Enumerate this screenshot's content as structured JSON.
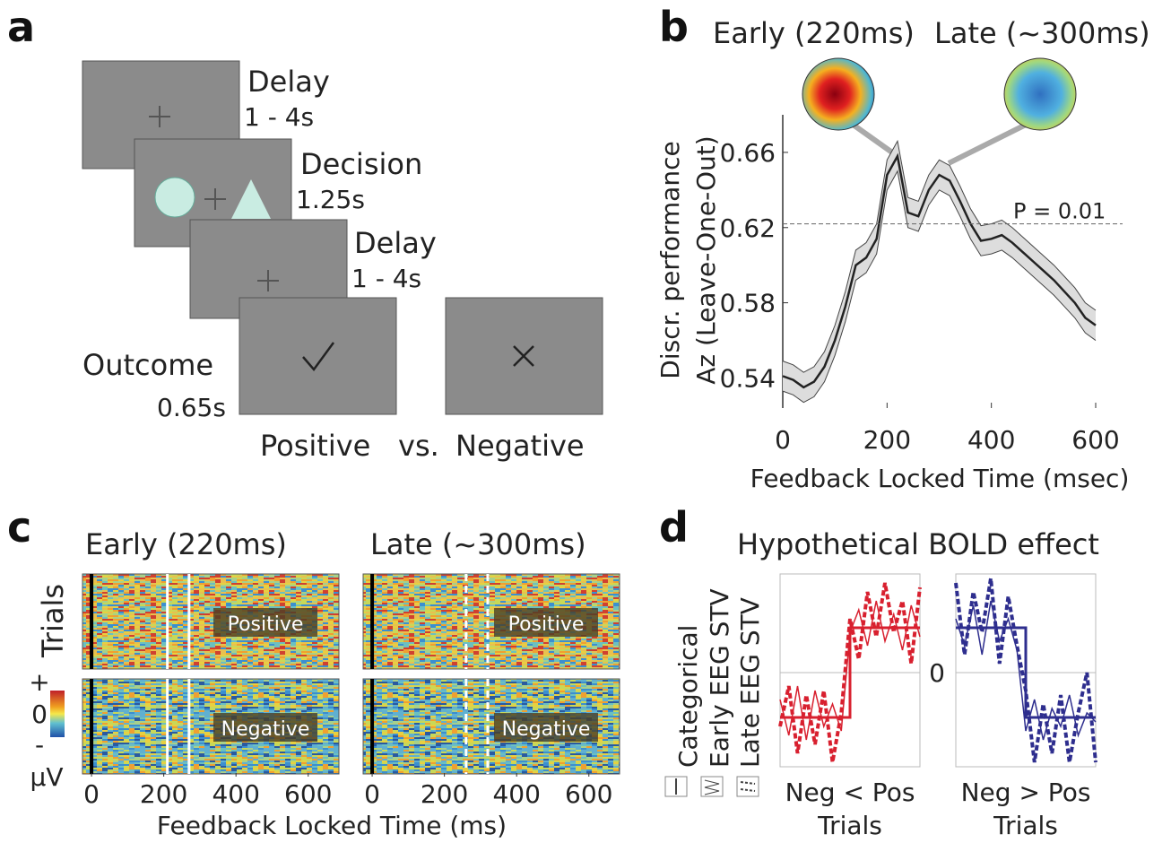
{
  "panel_labels": [
    "a",
    "b",
    "c",
    "d"
  ],
  "task_diagram": {
    "screens": [
      {
        "label": "Delay",
        "duration": "1 - 4s"
      },
      {
        "label": "Decision",
        "duration": "1.25s"
      },
      {
        "label": "Delay",
        "duration": "1 - 4s"
      },
      {
        "label": "Outcome",
        "duration": "0.65s"
      }
    ],
    "outcomes": [
      "Positive",
      "vs.",
      "Negative"
    ]
  },
  "chart_data": [
    {
      "type": "line",
      "topomap_titles": [
        "Early (220ms)",
        "Late (~300ms)"
      ],
      "ylabel": [
        "Discr. performance",
        "Az (Leave-One-Out)"
      ],
      "xlabel": "Feedback Locked Time (msec)",
      "x": [
        0,
        20,
        40,
        60,
        80,
        100,
        120,
        140,
        160,
        180,
        200,
        220,
        240,
        260,
        280,
        300,
        320,
        340,
        360,
        380,
        400,
        420,
        440,
        460,
        480,
        500,
        520,
        540,
        560,
        580,
        600
      ],
      "values": [
        0.541,
        0.539,
        0.535,
        0.538,
        0.546,
        0.56,
        0.578,
        0.6,
        0.604,
        0.614,
        0.648,
        0.658,
        0.628,
        0.626,
        0.64,
        0.648,
        0.645,
        0.634,
        0.622,
        0.613,
        0.614,
        0.616,
        0.612,
        0.607,
        0.602,
        0.597,
        0.592,
        0.586,
        0.58,
        0.572,
        0.568
      ],
      "errors": [
        0.008,
        0.008,
        0.008,
        0.008,
        0.008,
        0.008,
        0.008,
        0.008,
        0.008,
        0.008,
        0.008,
        0.008,
        0.008,
        0.008,
        0.008,
        0.008,
        0.008,
        0.008,
        0.008,
        0.008,
        0.008,
        0.008,
        0.008,
        0.008,
        0.008,
        0.008,
        0.008,
        0.008,
        0.008,
        0.008,
        0.008
      ],
      "color": "#222222",
      "band_color": "#dddddd",
      "xlim": [
        0,
        600
      ],
      "ylim": [
        0.524,
        0.68
      ],
      "xticks": [
        0,
        200,
        400,
        600
      ],
      "yticks": [
        0.54,
        0.58,
        0.62,
        0.66
      ],
      "threshold": {
        "value": 0.622,
        "label": "P = 0.01"
      }
    },
    {
      "type": "raster",
      "panels": [
        {
          "title": "Early (220ms)",
          "window": [
            210,
            270
          ],
          "window_line": "solid"
        },
        {
          "title": "Late (~300ms)",
          "window": [
            260,
            320
          ],
          "window_line": "dashed"
        }
      ],
      "rows": [
        "Positive",
        "Negative"
      ],
      "ylabel": "Trials",
      "xlabel": "Feedback Locked Time (ms)",
      "xlim": [
        -25,
        685
      ],
      "xticks": [
        0,
        200,
        400,
        600
      ],
      "colorbar": {
        "labels": [
          "+",
          "0",
          "-"
        ],
        "unit": "µV"
      }
    },
    {
      "type": "step",
      "title": "Hypothetical BOLD effect",
      "legend": [
        {
          "name": "Categorical",
          "line": "solid"
        },
        {
          "name": "Early EEG STV",
          "line": "thin"
        },
        {
          "name": "Late EEG STV",
          "line": "dashed"
        }
      ],
      "xlim": [
        0,
        16
      ],
      "ylim": [
        -2.1,
        2.2
      ],
      "yticks": [
        0
      ],
      "plots": [
        {
          "label": "Neg < Pos",
          "xlabel": "Trials",
          "color": "#d8202f",
          "series": [
            {
              "x": [
                0,
                8,
                8,
                16
              ],
              "values": [
                -1,
                -1,
                1,
                1
              ]
            },
            {
              "x": [
                0,
                1,
                2,
                3,
                4,
                5,
                6,
                7,
                8,
                9,
                10,
                11,
                12,
                13,
                14,
                15,
                16
              ],
              "values": [
                -0.6,
                -1.4,
                -0.3,
                -1.5,
                -0.4,
                -1.2,
                -0.7,
                -1.3,
                0.9,
                1.4,
                0.6,
                1.6,
                0.7,
                1.3,
                0.5,
                1.5,
                0.8
              ]
            },
            {
              "x": [
                0,
                1,
                2,
                3,
                4,
                5,
                6,
                7,
                8,
                9,
                10,
                11,
                12,
                13,
                14,
                15,
                16
              ],
              "values": [
                -1.2,
                -0.3,
                -1.8,
                -0.5,
                -1.6,
                -0.4,
                -2.0,
                -0.9,
                1.2,
                0.3,
                1.8,
                0.8,
                2.0,
                0.9,
                1.6,
                0.2,
                1.9
              ]
            }
          ]
        },
        {
          "label": "Neg > Pos",
          "xlabel": "Trials",
          "color": "#2e2e8e",
          "series": [
            {
              "x": [
                0,
                8,
                8,
                16
              ],
              "values": [
                1,
                1,
                -1,
                -1
              ]
            },
            {
              "x": [
                0,
                1,
                2,
                3,
                4,
                5,
                6,
                7,
                8,
                9,
                10,
                11,
                12,
                13,
                14,
                15,
                16
              ],
              "values": [
                1.2,
                0.6,
                1.5,
                0.4,
                1.6,
                0.7,
                1.2,
                0.5,
                -1.3,
                -0.6,
                -1.5,
                -0.8,
                -1.2,
                -0.5,
                -1.4,
                -0.9,
                -1.1
              ]
            },
            {
              "x": [
                0,
                1,
                2,
                3,
                4,
                5,
                6,
                7,
                8,
                9,
                10,
                11,
                12,
                13,
                14,
                15,
                16
              ],
              "values": [
                2.0,
                0.4,
                1.8,
                0.9,
                2.1,
                0.2,
                1.7,
                0.6,
                -0.4,
                -2.0,
                -0.7,
                -1.8,
                -0.5,
                -2.0,
                -0.9,
                0.0,
                -2.0
              ]
            }
          ]
        }
      ]
    }
  ]
}
